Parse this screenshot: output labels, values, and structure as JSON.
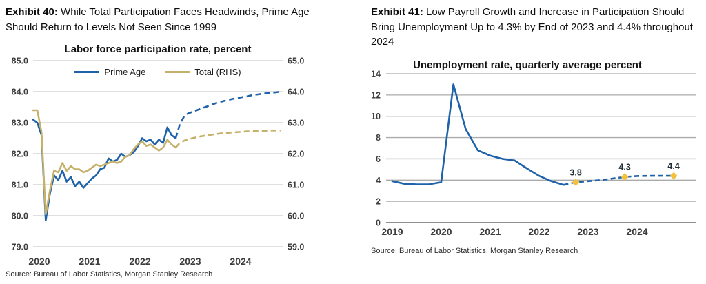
{
  "exhibits": [
    {
      "label": "Exhibit 40:",
      "title": "While Total Participation Faces Headwinds, Prime Age Should Return to Levels Not Seen Since 1999",
      "source": "Source: Bureau of Labor Statistics, Morgan Stanley Research"
    },
    {
      "label": "Exhibit 41:",
      "title": "Low Payroll Growth and Increase in Participation Should Bring Unemployment Up to 4.3% by End of 2023 and 4.4% throughout 2024",
      "source": "Source: Bureau of Labor Statistics, Morgan Stanley Research"
    }
  ],
  "colors": {
    "prime_age_blue": "#1e62a9",
    "total_tan": "#c5b169",
    "forecast_marker_gold": "#f3c13d",
    "grid_light": "#cccccc",
    "grid_medium": "#ababab",
    "axis_line": "#8f8f8f"
  },
  "chart_data": [
    {
      "type": "line",
      "title": "Labor force participation rate, percent",
      "x_tick_labels": [
        "2020",
        "2021",
        "2022",
        "2023",
        "2024"
      ],
      "x_range_note": "monthly, Jan 2020 - Dec 2024; forecast dashed from Nov 2022",
      "left_axis": {
        "ticks": [
          85.0,
          84.0,
          83.0,
          82.0,
          81.0,
          80.0,
          79.0
        ],
        "range": [
          79.0,
          85.0
        ]
      },
      "right_axis": {
        "ticks": [
          65.0,
          64.0,
          63.0,
          62.0,
          61.0,
          60.0,
          59.0
        ],
        "range": [
          59.0,
          65.0
        ]
      },
      "legend": [
        {
          "name": "Prime Age",
          "color_key": "prime_age_blue"
        },
        {
          "name": "Total (RHS)",
          "color_key": "total_tan"
        }
      ],
      "series": [
        {
          "name": "Prime Age",
          "axis": "left",
          "color_key": "prime_age_blue",
          "actual_monthly": [
            83.1,
            83.0,
            82.6,
            79.85,
            80.7,
            81.3,
            81.15,
            81.45,
            81.1,
            81.25,
            80.95,
            81.1,
            80.9,
            81.05,
            81.2,
            81.3,
            81.5,
            81.55,
            81.85,
            81.75,
            81.8,
            82.0,
            81.9,
            81.95,
            82.05,
            82.25,
            82.5,
            82.4,
            82.45,
            82.3,
            82.45,
            82.35,
            82.85,
            82.6,
            82.5
          ],
          "forecast_monthly": [
            82.5,
            82.95,
            83.2,
            83.3,
            83.35,
            83.4,
            83.45,
            83.5,
            83.55,
            83.6,
            83.65,
            83.68,
            83.72,
            83.75,
            83.78,
            83.8,
            83.83,
            83.85,
            83.88,
            83.9,
            83.92,
            83.94,
            83.95,
            83.97,
            83.98,
            84.0
          ]
        },
        {
          "name": "Total (RHS)",
          "axis": "right",
          "color_key": "total_tan",
          "actual_monthly": [
            63.4,
            63.4,
            62.7,
            60.05,
            60.8,
            61.45,
            61.4,
            61.7,
            61.45,
            61.6,
            61.5,
            61.5,
            61.4,
            61.45,
            61.55,
            61.65,
            61.6,
            61.65,
            61.7,
            61.75,
            61.7,
            61.75,
            61.9,
            61.95,
            62.15,
            62.3,
            62.4,
            62.25,
            62.3,
            62.2,
            62.1,
            62.2,
            62.45,
            62.3,
            62.2
          ],
          "forecast_monthly": [
            62.2,
            62.35,
            62.42,
            62.47,
            62.5,
            62.53,
            62.56,
            62.58,
            62.6,
            62.62,
            62.64,
            62.66,
            62.67,
            62.68,
            62.69,
            62.7,
            62.71,
            62.72,
            62.72,
            62.73,
            62.73,
            62.74,
            62.74,
            62.75,
            62.75,
            62.75
          ]
        }
      ]
    },
    {
      "type": "line",
      "title": "Unemployment rate, quarterly average percent",
      "x_tick_labels": [
        "2019",
        "2020",
        "2021",
        "2022",
        "2023",
        "2024"
      ],
      "x_range_note": "quarterly, 2019Q1 - 2024Q4; forecast dashed from 2022Q4",
      "y_axis": {
        "ticks": [
          14,
          12,
          10,
          8,
          6,
          4,
          2,
          0
        ],
        "range": [
          0,
          14
        ]
      },
      "series": [
        {
          "name": "Unemployment rate",
          "color_key": "prime_age_blue",
          "actual_quarterly": [
            3.9,
            3.65,
            3.6,
            3.6,
            3.8,
            13.0,
            8.8,
            6.8,
            6.3,
            6.0,
            5.85,
            5.1,
            4.4,
            3.9,
            3.55
          ],
          "forecast_quarterly": [
            3.55,
            3.8,
            3.9,
            4.0,
            4.15,
            4.3,
            4.38,
            4.4,
            4.4,
            4.4
          ]
        }
      ],
      "annotations": [
        {
          "label": "3.8",
          "quarter_index": 15,
          "value": 3.8
        },
        {
          "label": "4.3",
          "quarter_index": 19,
          "value": 4.3
        },
        {
          "label": "4.4",
          "quarter_index": 23,
          "value": 4.4
        }
      ]
    }
  ]
}
